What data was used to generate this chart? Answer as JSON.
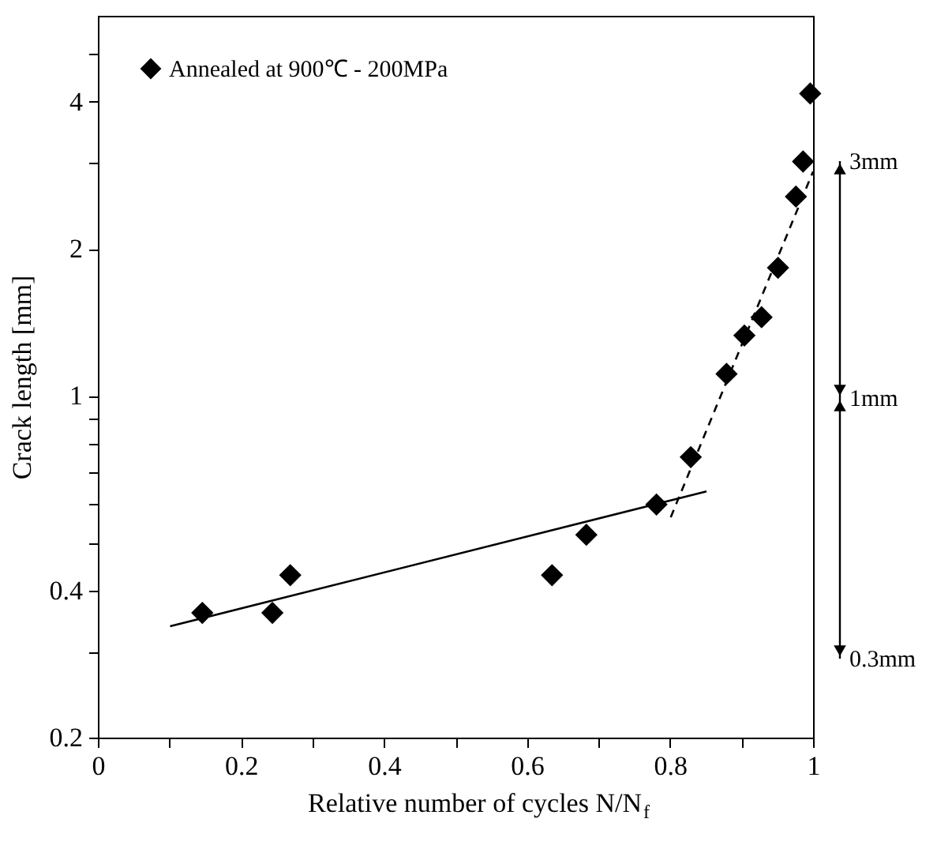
{
  "chart_data": {
    "type": "scatter",
    "xlabel": "Relative number of cycles N/N$_{f}$",
    "ylabel": "Crack length [mm]",
    "log": "y",
    "grid": false,
    "legend": "top left",
    "xlim": [
      0,
      1
    ],
    "ylim": [
      0.2,
      6
    ],
    "xticks": [
      0,
      0.2,
      0.4,
      0.6,
      0.8,
      1,
      {
        "value": 0.1,
        "label": null
      },
      {
        "value": 0.3,
        "label": null
      },
      {
        "value": 0.5,
        "label": null
      },
      {
        "value": 0.7,
        "label": null
      },
      {
        "value": 0.9,
        "label": null
      }
    ],
    "yticks": [
      0.2,
      0.4,
      1,
      2,
      4,
      {
        "value": 0.3,
        "label": null
      },
      {
        "value": 0.5,
        "label": null
      },
      {
        "value": 0.6,
        "label": null
      },
      {
        "value": 0.7,
        "label": null
      },
      {
        "value": 0.8,
        "label": null
      },
      {
        "value": 0.9,
        "label": null
      },
      {
        "value": 3,
        "label": null
      },
      {
        "value": 5,
        "label": null
      }
    ],
    "series": [
      {
        "name": "Annealed at 900℃ - 200MPa",
        "color": "#000000",
        "type": "scatter",
        "marker": "diamond",
        "x": [
          0.146,
          0.244,
          0.269,
          0.635,
          0.683,
          0.781,
          0.829,
          0.879,
          0.904,
          0.928,
          0.951,
          0.976,
          0.986,
          0.996
        ],
        "values": [
          0.36,
          0.36,
          0.43,
          0.43,
          0.52,
          0.6,
          0.75,
          1.11,
          1.33,
          1.45,
          1.83,
          2.56,
          3.02,
          4.16
        ]
      },
      {
        "color": "#000000",
        "type": "line",
        "line_style": "solid",
        "x": [
          0.101,
          0.851
        ],
        "values": [
          0.338,
          0.638
        ]
      },
      {
        "color": "#000000",
        "type": "line",
        "line_style": "dashed",
        "x": [
          0.801,
          1.0
        ],
        "values": [
          0.565,
          2.88
        ]
      }
    ],
    "annotations": [
      "3mm",
      "1mm",
      "0.3mm"
    ]
  }
}
